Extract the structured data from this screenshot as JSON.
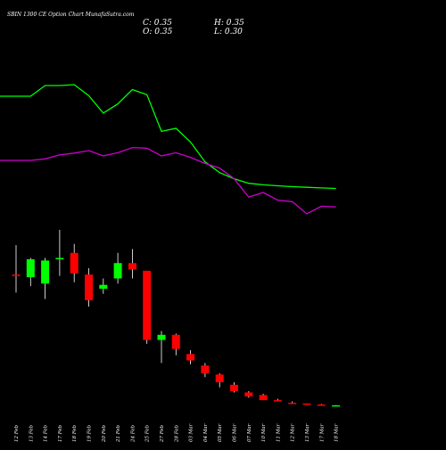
{
  "header": {
    "title": "SBIN 1300 CE Option  Chart MunafaSutra.com",
    "close": "C: 0.35",
    "open": "O: 0.35",
    "high": "H: 0.35",
    "low": "L: 0.30"
  },
  "colors": {
    "background": "#000000",
    "up": "#00ff00",
    "down": "#ff0000",
    "ma_fast": "#00ff00",
    "ma_slow": "#cc00cc",
    "text": "#ffffff"
  },
  "chart_data": {
    "type": "candlestick",
    "title": "SBIN 1300 CE Option  Chart MunafaSutra.com",
    "categories": [
      "12 Feb",
      "13 Feb",
      "14 Feb",
      "17 Feb",
      "18 Feb",
      "19 Feb",
      "20 Feb",
      "21 Feb",
      "24 Feb",
      "25 Feb",
      "27 Feb",
      "28 Feb",
      "03 Mar",
      "04 Mar",
      "05 Mar",
      "06 Mar",
      "07 Mar",
      "10 Mar",
      "11 Mar",
      "12 Mar",
      "13 Mar",
      "17 Mar",
      "18 Mar"
    ],
    "ohlc": [
      {
        "o": 23.5,
        "h": 35.0,
        "l": 16.5,
        "c": 23.0
      },
      {
        "o": 22.5,
        "h": 30.0,
        "l": 19.0,
        "c": 29.5
      },
      {
        "o": 20.0,
        "h": 30.0,
        "l": 14.0,
        "c": 29.0
      },
      {
        "o": 29.5,
        "h": 41.0,
        "l": 23.0,
        "c": 30.0
      },
      {
        "o": 32.0,
        "h": 35.5,
        "l": 20.5,
        "c": 24.0
      },
      {
        "o": 23.5,
        "h": 26.0,
        "l": 11.0,
        "c": 13.5
      },
      {
        "o": 18.0,
        "h": 22.0,
        "l": 16.0,
        "c": 19.5
      },
      {
        "o": 22.0,
        "h": 32.0,
        "l": 20.0,
        "c": 28.0
      },
      {
        "o": 28.0,
        "h": 33.5,
        "l": 22.0,
        "c": 25.5
      },
      {
        "o": 25.0,
        "h": 25.0,
        "l": -3.5,
        "c": -2.0
      },
      {
        "o": -2.0,
        "h": 1.5,
        "l": -11.0,
        "c": 0.0
      },
      {
        "o": 0.0,
        "h": 0.5,
        "l": -8.0,
        "c": -5.5
      },
      {
        "o": -7.5,
        "h": -6.0,
        "l": -11.5,
        "c": -10.0
      },
      {
        "o": -12.0,
        "h": -11.0,
        "l": -16.5,
        "c": -15.0
      },
      {
        "o": -15.5,
        "h": -15.0,
        "l": -20.5,
        "c": -18.5
      },
      {
        "o": -19.5,
        "h": -18.5,
        "l": -22.5,
        "c": -22.0
      },
      {
        "o": -22.5,
        "h": -22.0,
        "l": -24.5,
        "c": -24.0
      },
      {
        "o": -23.5,
        "h": -23.0,
        "l": -25.5,
        "c": -25.5
      },
      {
        "o": -25.5,
        "h": -25.0,
        "l": -26.0,
        "c": -26.0
      },
      {
        "o": -26.5,
        "h": -26.0,
        "l": -27.0,
        "c": -27.0
      },
      {
        "o": -26.8,
        "h": -26.8,
        "l": -27.3,
        "c": -27.3
      },
      {
        "o": -27.2,
        "h": -27.0,
        "l": -27.6,
        "c": -27.6
      },
      {
        "o": -27.5,
        "h": -27.4,
        "l": -27.5,
        "c": -27.5
      }
    ],
    "ma_fast": [
      0,
      0,
      3.5,
      3.5,
      3.8,
      0.2,
      -5.5,
      -2.5,
      2.2,
      0.5,
      -11.5,
      -10.5,
      -15,
      -21.5,
      -25,
      -27,
      -28.5,
      -29,
      -29.3,
      -29.6,
      -29.8,
      -30,
      -30.2
    ],
    "ma_slow": [
      -21,
      -21,
      -20.5,
      -19.2,
      -18.6,
      -17.8,
      -19.5,
      -18.5,
      -16.8,
      -17,
      -19.5,
      -18.5,
      -20,
      -22,
      -23.5,
      -27,
      -33,
      -31.5,
      -34,
      -34.5,
      -38.5,
      -36,
      -36.2
    ],
    "ylim": [
      -30,
      42
    ],
    "grid": false,
    "legend": "none"
  }
}
